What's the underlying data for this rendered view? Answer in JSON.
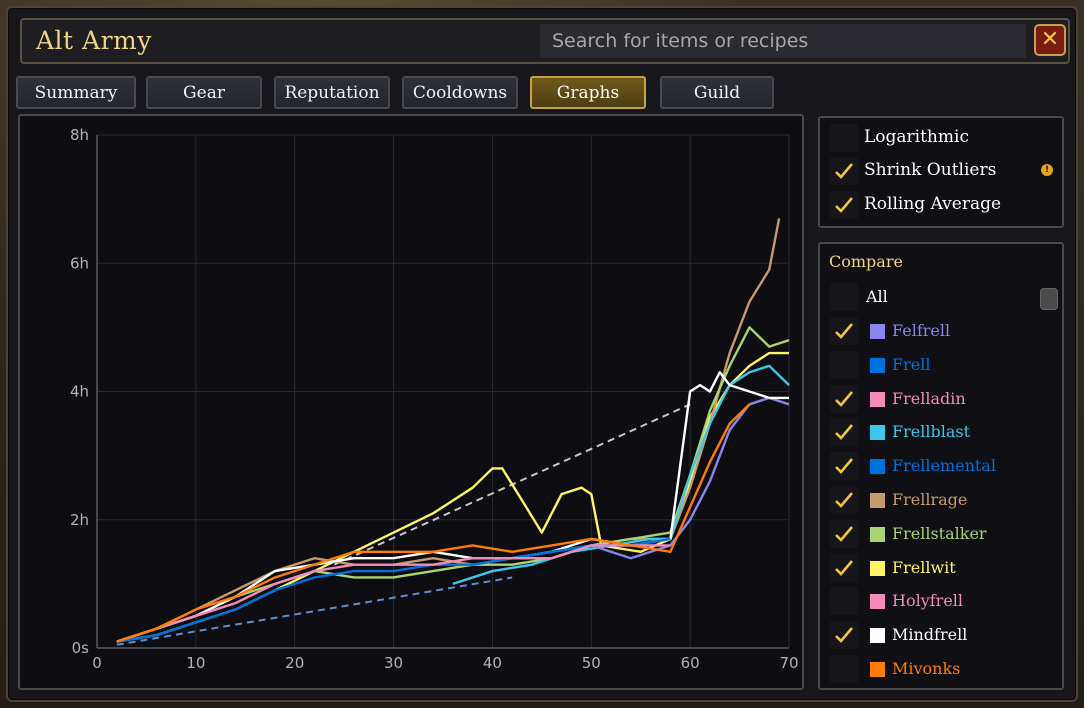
{
  "window": {
    "title": "Alt Army",
    "search_placeholder": "Search for items or recipes",
    "close_glyph": "✕"
  },
  "tabs": [
    {
      "label": "Summary",
      "active": false
    },
    {
      "label": "Gear",
      "active": false
    },
    {
      "label": "Reputation",
      "active": false
    },
    {
      "label": "Cooldowns",
      "active": false
    },
    {
      "label": "Graphs",
      "active": true
    },
    {
      "label": "Guild",
      "active": false
    }
  ],
  "options": [
    {
      "label": "Logarithmic",
      "checked": false
    },
    {
      "label": "Shrink Outliers",
      "checked": true,
      "warning": "!"
    },
    {
      "label": "Rolling Average",
      "checked": true
    }
  ],
  "compare": {
    "title": "Compare",
    "all_label": "All",
    "alts": [
      {
        "name": "Felfrell",
        "color": "#8787ed",
        "checked": true
      },
      {
        "name": "Frell",
        "color": "#0070dd",
        "checked": false
      },
      {
        "name": "Frelladin",
        "color": "#f48cba",
        "checked": true
      },
      {
        "name": "Frellblast",
        "color": "#3fc7eb",
        "checked": true
      },
      {
        "name": "Frellemental",
        "color": "#0070dd",
        "checked": true
      },
      {
        "name": "Frellrage",
        "color": "#c69b6d",
        "checked": true
      },
      {
        "name": "Frellstalker",
        "color": "#aad372",
        "checked": true
      },
      {
        "name": "Frellwit",
        "color": "#fff468",
        "checked": true
      },
      {
        "name": "Holyfrell",
        "color": "#f48cba",
        "checked": false
      },
      {
        "name": "Mindfrell",
        "color": "#ffffff",
        "checked": true
      },
      {
        "name": "Mivonks",
        "color": "#ff7c0a",
        "checked": false
      }
    ]
  },
  "chart_data": {
    "type": "line",
    "title": "",
    "xlabel": "",
    "ylabel": "",
    "xlim": [
      0,
      70
    ],
    "ylim": [
      0,
      8
    ],
    "x_ticks": [
      "0",
      "10",
      "20",
      "30",
      "40",
      "50",
      "60",
      "70"
    ],
    "y_ticks": [
      "0s",
      "2h",
      "4h",
      "6h",
      "8h"
    ],
    "grid": true,
    "series": [
      {
        "name": "Frellwit",
        "color": "#fff468",
        "points": [
          [
            2,
            0.1
          ],
          [
            6,
            0.2
          ],
          [
            10,
            0.4
          ],
          [
            14,
            0.6
          ],
          [
            18,
            0.9
          ],
          [
            22,
            1.2
          ],
          [
            26,
            1.5
          ],
          [
            30,
            1.8
          ],
          [
            34,
            2.1
          ],
          [
            38,
            2.5
          ],
          [
            40,
            2.8
          ],
          [
            41,
            2.8
          ],
          [
            43,
            2.3
          ],
          [
            45,
            1.8
          ],
          [
            47,
            2.4
          ],
          [
            49,
            2.5
          ],
          [
            50,
            2.4
          ],
          [
            51,
            1.6
          ],
          [
            55,
            1.5
          ],
          [
            58,
            1.7
          ],
          [
            60,
            2.6
          ],
          [
            62,
            3.6
          ],
          [
            64,
            4.1
          ],
          [
            66,
            4.4
          ],
          [
            68,
            4.6
          ],
          [
            70,
            4.6
          ]
        ]
      },
      {
        "name": "Frellrage",
        "color": "#c69b6d",
        "points": [
          [
            2,
            0.1
          ],
          [
            6,
            0.3
          ],
          [
            10,
            0.6
          ],
          [
            14,
            0.9
          ],
          [
            18,
            1.2
          ],
          [
            22,
            1.4
          ],
          [
            26,
            1.3
          ],
          [
            30,
            1.3
          ],
          [
            34,
            1.4
          ],
          [
            38,
            1.3
          ],
          [
            42,
            1.4
          ],
          [
            46,
            1.4
          ],
          [
            50,
            1.6
          ],
          [
            54,
            1.7
          ],
          [
            58,
            1.7
          ],
          [
            60,
            2.5
          ],
          [
            62,
            3.5
          ],
          [
            64,
            4.6
          ],
          [
            66,
            5.4
          ],
          [
            68,
            5.9
          ],
          [
            69,
            6.7
          ]
        ]
      },
      {
        "name": "Frellstalker",
        "color": "#aad372",
        "points": [
          [
            2,
            0.1
          ],
          [
            6,
            0.3
          ],
          [
            10,
            0.5
          ],
          [
            14,
            0.8
          ],
          [
            18,
            1.0
          ],
          [
            22,
            1.2
          ],
          [
            26,
            1.1
          ],
          [
            30,
            1.1
          ],
          [
            34,
            1.2
          ],
          [
            38,
            1.3
          ],
          [
            42,
            1.3
          ],
          [
            46,
            1.4
          ],
          [
            50,
            1.6
          ],
          [
            54,
            1.7
          ],
          [
            58,
            1.8
          ],
          [
            60,
            2.7
          ],
          [
            62,
            3.7
          ],
          [
            64,
            4.4
          ],
          [
            66,
            5.0
          ],
          [
            68,
            4.7
          ],
          [
            70,
            4.8
          ]
        ]
      },
      {
        "name": "Frellblast",
        "color": "#3fc7eb",
        "points": [
          [
            36,
            1.0
          ],
          [
            40,
            1.2
          ],
          [
            44,
            1.3
          ],
          [
            48,
            1.5
          ],
          [
            52,
            1.6
          ],
          [
            56,
            1.7
          ],
          [
            58,
            1.7
          ],
          [
            60,
            2.7
          ],
          [
            62,
            3.5
          ],
          [
            64,
            4.1
          ],
          [
            66,
            4.3
          ],
          [
            68,
            4.4
          ],
          [
            70,
            4.1
          ]
        ]
      },
      {
        "name": "Felfrell",
        "color": "#8787ed",
        "points": [
          [
            42,
            1.4
          ],
          [
            46,
            1.5
          ],
          [
            50,
            1.6
          ],
          [
            54,
            1.4
          ],
          [
            58,
            1.6
          ],
          [
            60,
            2.0
          ],
          [
            62,
            2.6
          ],
          [
            64,
            3.4
          ],
          [
            66,
            3.8
          ],
          [
            68,
            3.9
          ],
          [
            70,
            3.8
          ]
        ]
      },
      {
        "name": "Mindfrell",
        "color": "#ffffff",
        "points": [
          [
            2,
            0.1
          ],
          [
            6,
            0.3
          ],
          [
            10,
            0.5
          ],
          [
            14,
            0.8
          ],
          [
            18,
            1.2
          ],
          [
            22,
            1.3
          ],
          [
            26,
            1.4
          ],
          [
            30,
            1.4
          ],
          [
            34,
            1.5
          ],
          [
            38,
            1.4
          ],
          [
            42,
            1.4
          ],
          [
            46,
            1.5
          ],
          [
            50,
            1.7
          ],
          [
            54,
            1.6
          ],
          [
            58,
            1.7
          ],
          [
            60,
            4.0
          ],
          [
            61,
            4.1
          ],
          [
            62,
            4.0
          ],
          [
            63,
            4.3
          ],
          [
            64,
            4.1
          ],
          [
            66,
            4.0
          ],
          [
            68,
            3.9
          ],
          [
            70,
            3.9
          ]
        ]
      },
      {
        "name": "Frellemental",
        "color": "#0070dd",
        "points": [
          [
            2,
            0.1
          ],
          [
            6,
            0.2
          ],
          [
            10,
            0.4
          ],
          [
            14,
            0.6
          ],
          [
            18,
            0.9
          ],
          [
            22,
            1.1
          ],
          [
            26,
            1.2
          ],
          [
            30,
            1.2
          ],
          [
            34,
            1.3
          ],
          [
            38,
            1.3
          ],
          [
            42,
            1.4
          ],
          [
            46,
            1.5
          ],
          [
            50,
            1.6
          ],
          [
            54,
            1.6
          ],
          [
            58,
            1.7
          ]
        ]
      },
      {
        "name": "Frelladin",
        "color": "#f48cba",
        "points": [
          [
            2,
            0.1
          ],
          [
            6,
            0.3
          ],
          [
            10,
            0.5
          ],
          [
            14,
            0.7
          ],
          [
            18,
            1.0
          ],
          [
            22,
            1.2
          ],
          [
            26,
            1.3
          ],
          [
            30,
            1.3
          ],
          [
            34,
            1.3
          ],
          [
            38,
            1.4
          ],
          [
            42,
            1.4
          ],
          [
            46,
            1.4
          ],
          [
            50,
            1.6
          ],
          [
            54,
            1.6
          ],
          [
            58,
            1.6
          ]
        ]
      },
      {
        "name": "Mivonks",
        "color": "#ff7c0a",
        "points": [
          [
            2,
            0.1
          ],
          [
            6,
            0.3
          ],
          [
            10,
            0.6
          ],
          [
            14,
            0.8
          ],
          [
            18,
            1.1
          ],
          [
            22,
            1.3
          ],
          [
            26,
            1.5
          ],
          [
            30,
            1.5
          ],
          [
            34,
            1.5
          ],
          [
            38,
            1.6
          ],
          [
            42,
            1.5
          ],
          [
            46,
            1.6
          ],
          [
            50,
            1.7
          ],
          [
            54,
            1.6
          ],
          [
            58,
            1.5
          ],
          [
            60,
            2.2
          ],
          [
            62,
            2.9
          ],
          [
            64,
            3.5
          ],
          [
            66,
            3.8
          ]
        ]
      }
    ],
    "dashed_series": [
      {
        "color": "#c8c8c8",
        "points": [
          [
            24,
            1.3
          ],
          [
            60,
            3.8
          ]
        ]
      },
      {
        "color": "#5b8fd6",
        "points": [
          [
            2,
            0.05
          ],
          [
            42,
            1.1
          ]
        ]
      }
    ]
  }
}
